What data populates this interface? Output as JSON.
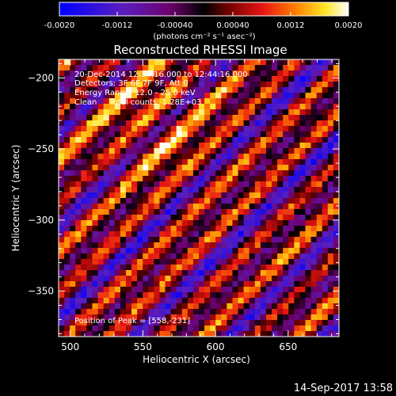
{
  "colorbar": {
    "ticks": [
      "-0.0020",
      "-0.0012",
      "-0.00040",
      "0.00040",
      "0.0012",
      "0.0020"
    ],
    "units_label": "(photons cm⁻² s⁻¹ asec⁻²)",
    "min": -0.002,
    "max": 0.002
  },
  "chart_data": {
    "type": "heatmap",
    "title": "Reconstructed RHESSI Image",
    "xlabel": "Heliocentric X (arcsec)",
    "ylabel": "Heliocentric Y (arcsec)",
    "xlim": [
      492,
      685
    ],
    "ylim": [
      -382,
      -187
    ],
    "x_ticks": [
      500,
      550,
      600,
      650
    ],
    "y_ticks": [
      -200,
      -250,
      -300,
      -350
    ],
    "annotations": [
      "20-Dec-2014 12:34:16.000 to 12:44:16.000",
      "Detectors: 3F 6F 7F 9F, Att 0",
      "Energy Range: 12.0 - 25.0 keV",
      "Clean     Total counts: 1.28E+03"
    ],
    "peak_label": "Position of Peak = [558,-231]",
    "peak": [
      558,
      -231
    ]
  },
  "footer": {
    "timestamp": "14-Sep-2017 13:58"
  }
}
